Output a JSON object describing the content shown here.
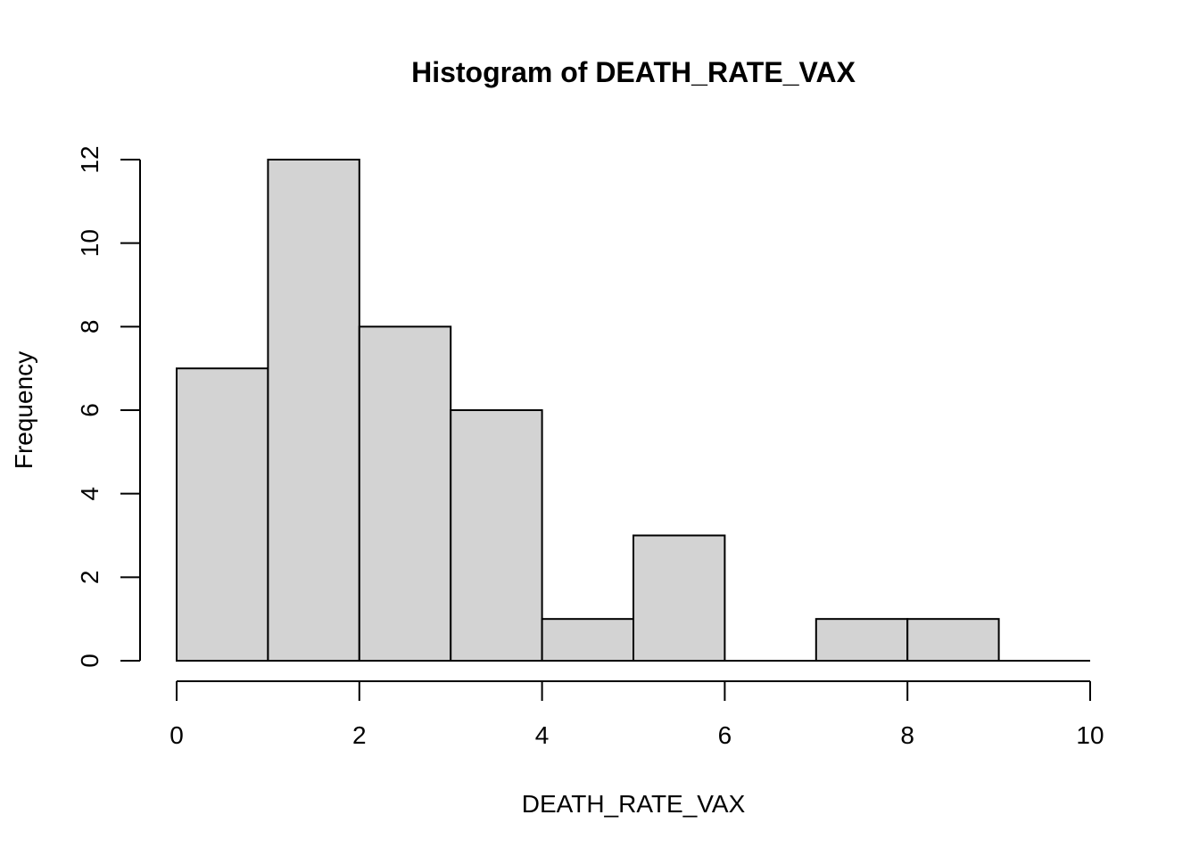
{
  "chart_data": {
    "type": "bar",
    "title": "Histogram of DEATH_RATE_VAX",
    "xlabel": "DEATH_RATE_VAX",
    "ylabel": "Frequency",
    "bins": [
      {
        "start": 0,
        "end": 1,
        "count": 7
      },
      {
        "start": 1,
        "end": 2,
        "count": 12
      },
      {
        "start": 2,
        "end": 3,
        "count": 8
      },
      {
        "start": 3,
        "end": 4,
        "count": 6
      },
      {
        "start": 4,
        "end": 5,
        "count": 1
      },
      {
        "start": 5,
        "end": 6,
        "count": 3
      },
      {
        "start": 6,
        "end": 7,
        "count": 0
      },
      {
        "start": 7,
        "end": 8,
        "count": 1
      },
      {
        "start": 8,
        "end": 9,
        "count": 1
      },
      {
        "start": 9,
        "end": 10,
        "count": 0
      }
    ],
    "xlim": [
      0,
      10
    ],
    "ylim": [
      0,
      12
    ],
    "x_ticks": [
      "0",
      "2",
      "4",
      "6",
      "8",
      "10"
    ],
    "y_ticks": [
      "0",
      "2",
      "4",
      "6",
      "8",
      "10",
      "12"
    ],
    "bar_color": "#d3d3d3",
    "grid": false,
    "legend": "none"
  }
}
